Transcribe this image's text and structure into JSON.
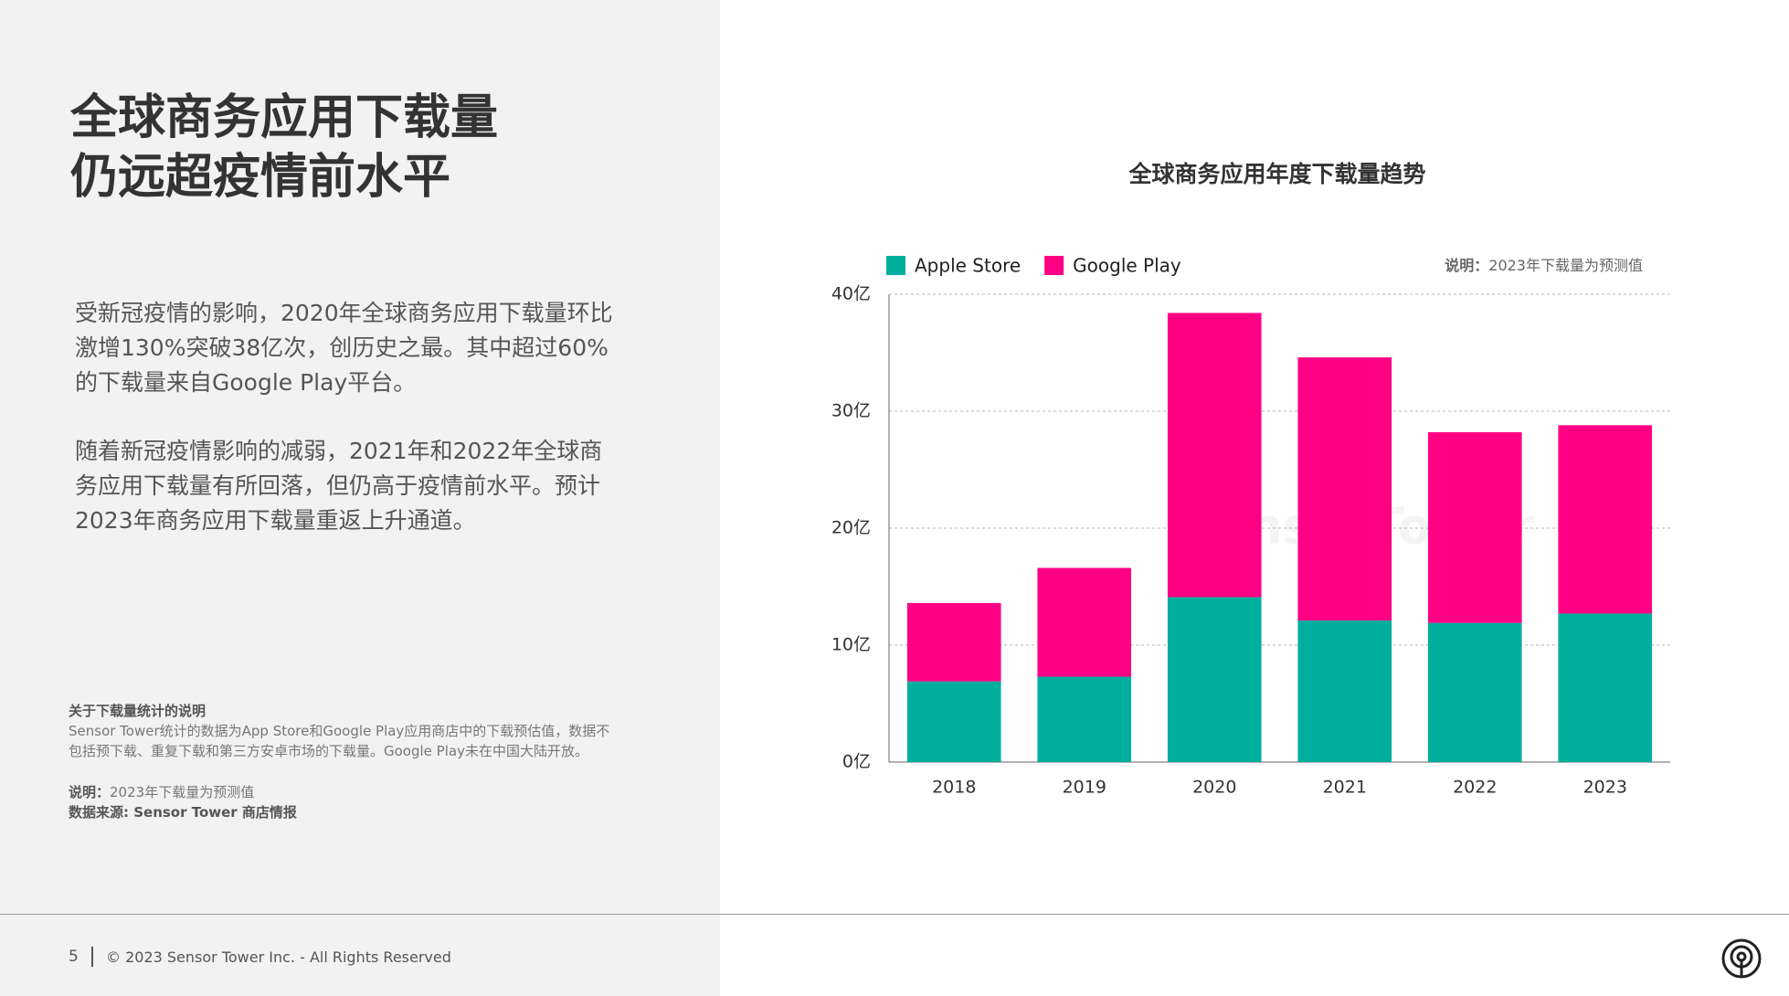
{
  "header": {
    "title_lines": [
      "全球商务应用下载量",
      "仍远超疫情前水平"
    ]
  },
  "body": {
    "paragraphs": [
      "受新冠疫情的影响，2020年全球商务应用下载量环比激增130%突破38亿次，创历史之最。其中超过60%的下载量来自Google Play平台。",
      "随着新冠疫情影响的减弱，2021年和2022年全球商务应用下载量有所回落，但仍高于疫情前水平。预计2023年商务应用下载量重返上升通道。"
    ]
  },
  "notes": {
    "heading": "关于下载量统计的说明",
    "text": "Sensor Tower统计的数据为App Store和Google Play应用商店中的下载预估值，数据不包括预下载、重复下载和第三方安卓市场的下载量。Google Play未在中国大陆开放。",
    "remark_label": "说明：",
    "remark": "2023年下载量为预测值",
    "source": "数据来源: Sensor Tower 商店情报"
  },
  "footer": {
    "page": "5",
    "copyright": "© 2023 Sensor Tower Inc. - All Rights Reserved"
  },
  "chart_data": {
    "type": "stacked_bar",
    "title": "全球商务应用年度下载量趋势",
    "note_label": "说明：",
    "note": "2023年下载量为预测值",
    "watermark": "SensorTower",
    "categories": [
      "2018",
      "2019",
      "2020",
      "2021",
      "2022",
      "2023"
    ],
    "series": [
      {
        "name": "Apple Store",
        "color": "#00ae9d",
        "values": [
          6.9,
          7.3,
          14.1,
          12.1,
          11.9,
          12.7
        ]
      },
      {
        "name": "Google Play",
        "color": "#ff0084",
        "values": [
          6.7,
          9.3,
          24.3,
          22.5,
          16.3,
          16.1
        ]
      }
    ],
    "ylim": [
      0,
      40
    ],
    "yticks": [
      {
        "value": 0,
        "label": "0亿"
      },
      {
        "value": 10,
        "label": "10亿"
      },
      {
        "value": 20,
        "label": "20亿"
      },
      {
        "value": 30,
        "label": "30亿"
      },
      {
        "value": 40,
        "label": "40亿"
      }
    ],
    "grid": true,
    "legend": "top-left"
  }
}
